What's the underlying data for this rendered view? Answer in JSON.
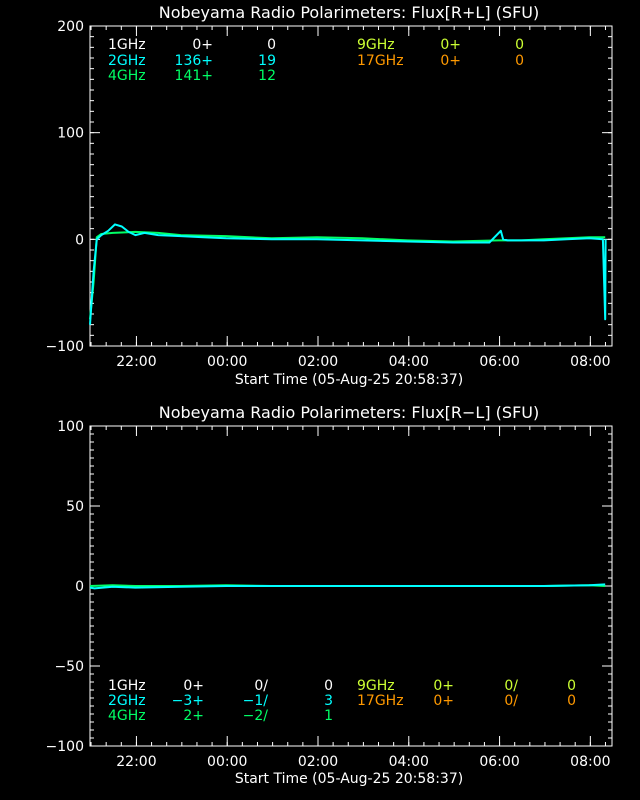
{
  "chart_data": [
    {
      "type": "line",
      "title": "Nobeyama Radio Polarimeters: Flux[R+L] (SFU)",
      "xlabel": "Start Time (05-Aug-25 20:58:37)",
      "x_ticks": [
        "22:00",
        "00:00",
        "02:00",
        "04:00",
        "06:00",
        "08:00"
      ],
      "x_tick_hours": [
        1.0229,
        3.0229,
        5.0229,
        7.0229,
        9.0229,
        11.0229
      ],
      "xlim_hours": [
        0,
        11.5
      ],
      "ylim": [
        -100,
        200
      ],
      "y_ticks": [
        -100,
        0,
        100,
        200
      ],
      "legend": [
        {
          "label": "1GHz",
          "c1": "0+",
          "c2": "0",
          "color": "#ffffff"
        },
        {
          "label": "2GHz",
          "c1": "136+",
          "c2": "19",
          "color": "#00ffff"
        },
        {
          "label": "4GHz",
          "c1": "141+",
          "c2": "12",
          "color": "#00ff66"
        },
        {
          "label": "9GHz",
          "c1": "0+",
          "c2": "0",
          "color": "#ccff33"
        },
        {
          "label": "17GHz",
          "c1": "0+",
          "c2": "0",
          "color": "#ff9900"
        }
      ],
      "series": [
        {
          "name": "4GHz",
          "color": "#00ff66",
          "x": [
            0.0,
            0.08,
            0.15,
            0.25,
            0.5,
            1.0,
            1.5,
            2.0,
            3.0,
            4.0,
            5.0,
            6.0,
            7.0,
            8.0,
            9.0,
            9.5,
            10.0,
            10.5,
            11.0,
            11.35
          ],
          "y": [
            -75,
            -40,
            2,
            5,
            6,
            7,
            6,
            4,
            3,
            1,
            2,
            1,
            -1,
            -2,
            -1,
            -1,
            0,
            1,
            2,
            2
          ]
        },
        {
          "name": "2GHz",
          "color": "#00ffff",
          "x": [
            0.0,
            0.08,
            0.15,
            0.25,
            0.4,
            0.55,
            0.7,
            0.85,
            1.0,
            1.2,
            1.5,
            2.0,
            2.5,
            3.0,
            4.0,
            5.0,
            6.0,
            7.0,
            8.0,
            8.8,
            9.05,
            9.1,
            9.2,
            9.5,
            10.0,
            10.5,
            11.0,
            11.3,
            11.35,
            11.36
          ],
          "y": [
            -80,
            -30,
            0,
            4,
            8,
            14,
            12,
            7,
            4,
            6,
            4,
            3,
            2,
            1,
            0,
            0,
            -1,
            -2,
            -3,
            -3,
            8,
            0,
            -1,
            -1,
            -1,
            0,
            1,
            0,
            -75,
            0
          ]
        }
      ]
    },
    {
      "type": "line",
      "title": "Nobeyama Radio Polarimeters: Flux[R−L] (SFU)",
      "xlabel": "Start Time (05-Aug-25 20:58:37)",
      "x_ticks": [
        "22:00",
        "00:00",
        "02:00",
        "04:00",
        "06:00",
        "08:00"
      ],
      "x_tick_hours": [
        1.0229,
        3.0229,
        5.0229,
        7.0229,
        9.0229,
        11.0229
      ],
      "xlim_hours": [
        0,
        11.5
      ],
      "ylim": [
        -100,
        100
      ],
      "y_ticks": [
        -100,
        -50,
        0,
        50,
        100
      ],
      "legend": [
        {
          "label": "1GHz",
          "c1": "0+",
          "c2": "0/",
          "c3": "0",
          "color": "#ffffff"
        },
        {
          "label": "2GHz",
          "c1": "−3+",
          "c2": "−1/",
          "c3": "3",
          "color": "#00ffff"
        },
        {
          "label": "4GHz",
          "c1": "2+",
          "c2": "−2/",
          "c3": "1",
          "color": "#00ff66"
        },
        {
          "label": "9GHz",
          "c1": "0+",
          "c2": "0/",
          "c3": "0",
          "color": "#ccff33"
        },
        {
          "label": "17GHz",
          "c1": "0+",
          "c2": "0/",
          "c3": "0",
          "color": "#ff9900"
        }
      ],
      "series": [
        {
          "name": "4GHz",
          "color": "#00ff66",
          "x": [
            0.0,
            0.5,
            1.0,
            2.0,
            3.0,
            4.0,
            5.0,
            6.0,
            7.0,
            8.0,
            9.0,
            10.0,
            11.0,
            11.35
          ],
          "y": [
            0,
            0.5,
            0,
            0,
            0.5,
            0,
            0,
            0,
            0,
            0,
            0,
            0,
            0.5,
            0
          ]
        },
        {
          "name": "2GHz",
          "color": "#00ffff",
          "x": [
            0.0,
            0.1,
            0.5,
            1.0,
            2.0,
            3.0,
            4.0,
            5.0,
            6.0,
            7.0,
            8.0,
            9.0,
            10.0,
            11.0,
            11.35
          ],
          "y": [
            -1,
            -1.5,
            -0.5,
            -1,
            -0.5,
            0,
            0,
            0,
            0,
            0,
            0,
            0,
            0,
            0.5,
            1
          ]
        }
      ]
    }
  ]
}
